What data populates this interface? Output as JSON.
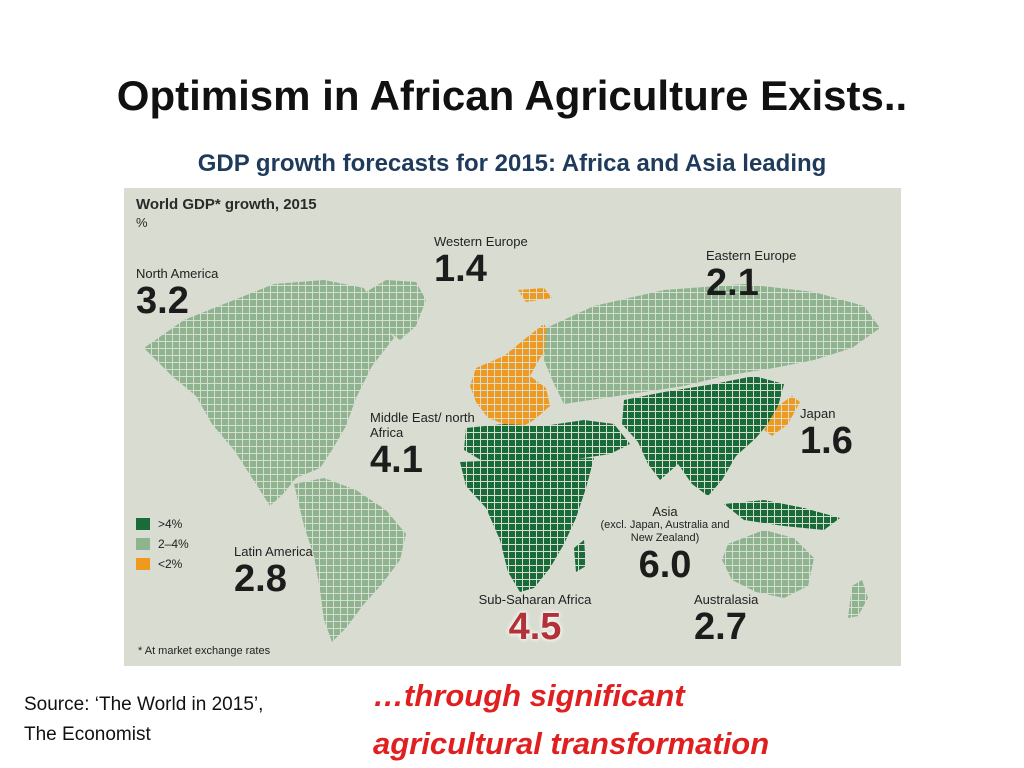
{
  "slide": {
    "title": "Optimism in African Agriculture Exists..",
    "subtitle": "GDP growth forecasts for 2015: Africa and Asia leading",
    "source": "Source: ‘The World in 2015’, The Economist",
    "tagline_line1": "…through significant",
    "tagline_line2": "agricultural transformation"
  },
  "map": {
    "title": "World GDP* growth, 2015",
    "unit": "%",
    "footnote": "* At market exchange rates",
    "colors": {
      "background": "#d9dcd1",
      "high": "#1a6b3a",
      "mid": "#8db48f",
      "low": "#ef9a1f"
    },
    "legend": [
      {
        "label": ">4%",
        "color": "#1a6b3a"
      },
      {
        "label": "2–4%",
        "color": "#8db48f"
      },
      {
        "label": "<2%",
        "color": "#ef9a1f"
      }
    ],
    "regions": [
      {
        "name": "North America",
        "value": "3.2",
        "category": "mid"
      },
      {
        "name": "Western Europe",
        "value": "1.4",
        "category": "low"
      },
      {
        "name": "Eastern Europe",
        "value": "2.1",
        "category": "mid"
      },
      {
        "name": "Middle East/ north Africa",
        "value": "4.1",
        "category": "high"
      },
      {
        "name": "Japan",
        "value": "1.6",
        "category": "low"
      },
      {
        "name": "Asia",
        "note": "(excl. Japan, Australia and New Zealand)",
        "value": "6.0",
        "category": "high"
      },
      {
        "name": "Latin America",
        "value": "2.8",
        "category": "mid"
      },
      {
        "name": "Sub-Saharan Africa",
        "value": "4.5",
        "category": "high"
      },
      {
        "name": "Australasia",
        "value": "2.7",
        "category": "mid"
      }
    ]
  }
}
